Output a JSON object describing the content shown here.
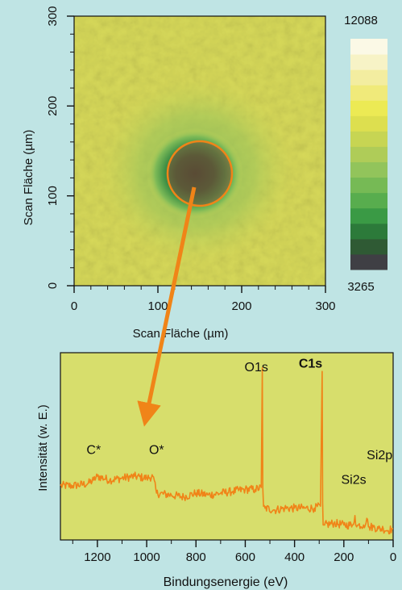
{
  "chart_data": [
    {
      "type": "heatmap",
      "xlabel": "Scan Fläche (µm)",
      "ylabel": "Scan Fläche (µm)",
      "xlim": [
        0,
        300
      ],
      "ylim": [
        0,
        300
      ],
      "x_ticks": [
        "0",
        "100",
        "200",
        "300"
      ],
      "y_ticks": [
        "0",
        "100",
        "200",
        "300"
      ],
      "colorbar": {
        "max": "12088",
        "min": "3265"
      },
      "colorscale": [
        "#3f3f44",
        "#2f5a34",
        "#2c7a3a",
        "#3a9a45",
        "#58ad4e",
        "#76ba55",
        "#92c45b",
        "#afcc58",
        "#c7d553",
        "#dddf4f",
        "#ecea54",
        "#f0ea7a",
        "#f3eda0",
        "#f7f3c6",
        "#fbf9e6"
      ],
      "feature": {
        "type": "depression",
        "center": [
          150,
          125
        ],
        "radius_um": 38
      },
      "colors": {
        "background": "#bfe4e4",
        "highlight_circle": "#f08418",
        "arrow": "#f08418"
      }
    },
    {
      "type": "line",
      "xlabel": "Bindungsenergie (eV)",
      "ylabel": "Intensität (w. E.)",
      "xlim": [
        1350,
        0
      ],
      "x_reversed": true,
      "x_ticks": [
        "1200",
        "1000",
        "800",
        "600",
        "400",
        "200",
        "0"
      ],
      "ylim": [
        0,
        100
      ],
      "series": [
        {
          "color": "#f08418",
          "x": [
            1350,
            1300,
            1240,
            1215,
            1200,
            1150,
            1100,
            1050,
            1000,
            975,
            960,
            900,
            850,
            800,
            750,
            700,
            650,
            600,
            560,
            535,
            531,
            529,
            526,
            520,
            480,
            440,
            400,
            360,
            320,
            295,
            288,
            286,
            284,
            282,
            278,
            240,
            200,
            165,
            155,
            152,
            148,
            140,
            120,
            110,
            104,
            100,
            97,
            80,
            60,
            40,
            20,
            5,
            0
          ],
          "y": [
            29,
            29,
            30,
            32,
            34,
            32,
            33,
            34,
            33,
            34,
            25,
            24,
            23,
            25,
            24,
            25,
            26,
            27,
            27,
            28,
            92,
            28,
            18,
            17,
            16,
            17,
            17,
            17,
            17,
            18,
            90,
            20,
            8,
            8,
            8,
            9,
            8,
            8,
            13,
            8,
            7,
            8,
            8,
            9,
            11,
            7,
            7,
            7,
            6,
            6,
            5,
            6,
            6
          ]
        }
      ],
      "annotations": [
        {
          "text": "C*",
          "x": 1215,
          "y": 46
        },
        {
          "text": "O*",
          "x": 960,
          "y": 46
        },
        {
          "text": "O1s",
          "x": 555,
          "y": 90
        },
        {
          "text": "C1s",
          "x": 335,
          "y": 92,
          "color": "#b02a2a",
          "bold": true
        },
        {
          "text": "Si2s",
          "x": 160,
          "y": 30
        },
        {
          "text": "Si2p",
          "x": 55,
          "y": 43
        }
      ],
      "colors": {
        "plot_background": "#d7de6c"
      }
    }
  ]
}
